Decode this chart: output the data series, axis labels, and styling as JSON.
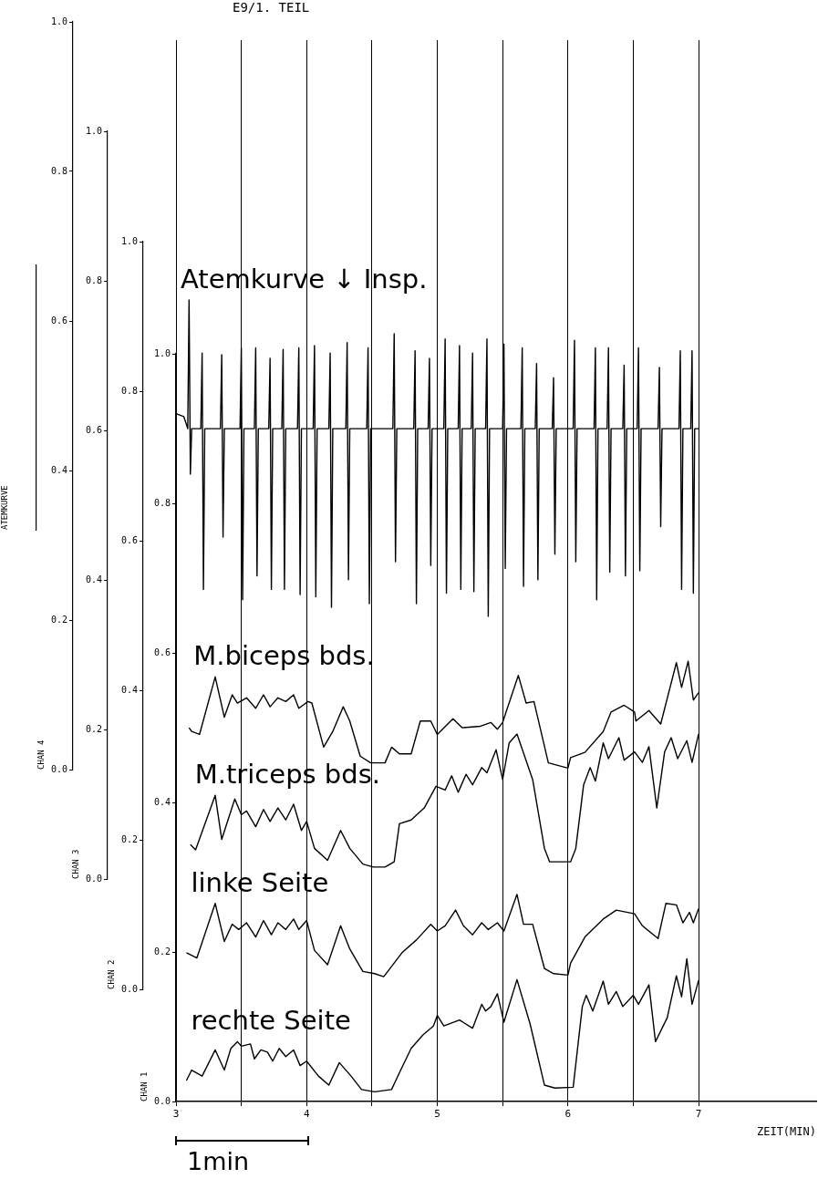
{
  "chart_data": [
    {
      "type": "line",
      "title": "E9/1. TEIL",
      "ylabel": "CHAN 4",
      "y2label": "ATEMKURVE",
      "tick_labels": "y",
      "xlim": [
        3,
        7.9
      ],
      "ylim": [
        0,
        1
      ],
      "yticks": [
        {
          "value": 0,
          "label": "0.0"
        },
        {
          "value": 0.2,
          "label": "0.2"
        },
        {
          "value": 0.4,
          "label": "0.4"
        },
        {
          "value": 0.6,
          "label": "0.6"
        },
        {
          "value": 0.8,
          "label": "0.8"
        },
        {
          "value": 1,
          "label": "1.0"
        }
      ],
      "series": [
        {
          "name": "Atemkurve ↓ Insp.",
          "color": "#000000",
          "x": [
            3.0,
            3.06,
            3.09,
            3.1,
            3.11,
            3.12,
            3.19,
            3.2,
            3.21,
            3.22,
            3.34,
            3.35,
            3.36,
            3.37,
            3.49,
            3.5,
            3.51,
            3.52,
            3.6,
            3.61,
            3.62,
            3.63,
            3.71,
            3.72,
            3.73,
            3.74,
            3.81,
            3.82,
            3.83,
            3.84,
            3.93,
            3.94,
            3.95,
            3.96,
            4.05,
            4.06,
            4.07,
            4.08,
            4.17,
            4.18,
            4.19,
            4.2,
            4.3,
            4.31,
            4.32,
            4.33,
            4.46,
            4.47,
            4.48,
            4.49,
            4.66,
            4.67,
            4.68,
            4.69,
            4.82,
            4.83,
            4.84,
            4.85,
            4.93,
            4.94,
            4.95,
            4.96,
            5.05,
            5.06,
            5.07,
            5.08,
            5.16,
            5.17,
            5.18,
            5.19,
            5.26,
            5.27,
            5.28,
            5.29,
            5.37,
            5.38,
            5.39,
            5.4,
            5.5,
            5.51,
            5.52,
            5.53,
            5.64,
            5.65,
            5.66,
            5.67,
            5.75,
            5.76,
            5.77,
            5.78,
            5.88,
            5.89,
            5.9,
            5.91,
            6.04,
            6.05,
            6.06,
            6.07,
            6.2,
            6.21,
            6.22,
            6.23,
            6.3,
            6.31,
            6.32,
            6.33,
            6.42,
            6.43,
            6.44,
            6.45,
            6.53,
            6.54,
            6.55,
            6.56,
            6.69,
            6.7,
            6.71,
            6.72,
            6.85,
            6.86,
            6.87,
            6.88,
            6.94,
            6.95,
            6.96,
            6.97,
            7.0
          ],
          "values": [
            0.476,
            0.472,
            0.456,
            0.628,
            0.395,
            0.456,
            0.456,
            0.557,
            0.241,
            0.456,
            0.456,
            0.555,
            0.311,
            0.456,
            0.456,
            0.564,
            0.227,
            0.456,
            0.456,
            0.564,
            0.259,
            0.456,
            0.456,
            0.55,
            0.241,
            0.456,
            0.456,
            0.562,
            0.241,
            0.456,
            0.456,
            0.564,
            0.234,
            0.456,
            0.456,
            0.567,
            0.231,
            0.456,
            0.456,
            0.557,
            0.217,
            0.456,
            0.456,
            0.571,
            0.254,
            0.456,
            0.456,
            0.564,
            0.222,
            0.456,
            0.456,
            0.583,
            0.278,
            0.456,
            0.456,
            0.56,
            0.222,
            0.456,
            0.456,
            0.55,
            0.273,
            0.456,
            0.456,
            0.576,
            0.236,
            0.456,
            0.456,
            0.567,
            0.241,
            0.456,
            0.456,
            0.557,
            0.238,
            0.456,
            0.456,
            0.576,
            0.205,
            0.456,
            0.456,
            0.569,
            0.269,
            0.456,
            0.456,
            0.564,
            0.245,
            0.456,
            0.456,
            0.543,
            0.254,
            0.456,
            0.456,
            0.524,
            0.288,
            0.456,
            0.456,
            0.574,
            0.278,
            0.456,
            0.456,
            0.564,
            0.227,
            0.456,
            0.456,
            0.564,
            0.264,
            0.456,
            0.456,
            0.541,
            0.259,
            0.456,
            0.456,
            0.564,
            0.266,
            0.456,
            0.456,
            0.538,
            0.325,
            0.456,
            0.456,
            0.56,
            0.241,
            0.456,
            0.456,
            0.56,
            0.236,
            0.456,
            0.456
          ]
        },
        {
          "name": "M.biceps bds.",
          "color": "#000000",
          "x": [
            3.1,
            3.12,
            3.18,
            3.3,
            3.37,
            3.43,
            3.47,
            3.54,
            3.61,
            3.67,
            3.72,
            3.78,
            3.84,
            3.9,
            3.94,
            4.01,
            4.04,
            4.13,
            4.2,
            4.28,
            4.33,
            4.41,
            4.49,
            4.6,
            4.65,
            4.71,
            4.8,
            4.87,
            4.95,
            5.0,
            5.12,
            5.19,
            5.33,
            5.41,
            5.46,
            5.5,
            5.62,
            5.68,
            5.74,
            5.85,
            6.0,
            6.02,
            6.13,
            6.27,
            6.33,
            6.43,
            6.51,
            6.52,
            6.62,
            6.71,
            6.83,
            6.87,
            6.92,
            6.96,
            7.0
          ],
          "values": [
            0.056,
            0.051,
            0.047,
            0.124,
            0.07,
            0.1,
            0.089,
            0.096,
            0.082,
            0.1,
            0.084,
            0.096,
            0.091,
            0.1,
            0.082,
            0.091,
            0.089,
            0.03,
            0.051,
            0.084,
            0.065,
            0.018,
            0.009,
            0.009,
            0.03,
            0.021,
            0.021,
            0.065,
            0.065,
            0.047,
            0.068,
            0.056,
            0.058,
            0.063,
            0.054,
            0.063,
            0.126,
            0.089,
            0.091,
            0.009,
            0.002,
            0.016,
            0.023,
            0.051,
            0.077,
            0.086,
            0.077,
            0.065,
            0.079,
            0.061,
            0.143,
            0.11,
            0.145,
            0.093,
            0.103
          ]
        }
      ]
    },
    {
      "type": "line",
      "ylabel": "CHAN 3",
      "tick_labels": "y",
      "xlim": [
        3,
        7.9
      ],
      "ylim": [
        0,
        1
      ],
      "yticks": [
        {
          "value": 0,
          "label": "0.0"
        },
        {
          "value": 0.2,
          "label": "0.2"
        },
        {
          "value": 0.4,
          "label": "0.4"
        },
        {
          "value": 0.6,
          "label": "0.6"
        },
        {
          "value": 0.8,
          "label": "0.8"
        },
        {
          "value": 1,
          "label": "1.0"
        }
      ],
      "series": [
        {
          "name": "M.triceps bds.",
          "color": "#000000",
          "x": [
            3.11,
            3.15,
            3.3,
            3.35,
            3.45,
            3.5,
            3.54,
            3.61,
            3.67,
            3.72,
            3.78,
            3.84,
            3.9,
            3.96,
            4.0,
            4.06,
            4.16,
            4.26,
            4.33,
            4.43,
            4.51,
            4.6,
            4.67,
            4.71,
            4.8,
            4.9,
            4.99,
            5.06,
            5.11,
            5.16,
            5.22,
            5.27,
            5.34,
            5.38,
            5.45,
            5.5,
            5.55,
            5.61,
            5.73,
            5.82,
            5.86,
            6.02,
            6.06,
            6.12,
            6.17,
            6.21,
            6.27,
            6.31,
            6.39,
            6.43,
            6.51,
            6.57,
            6.62,
            6.68,
            6.74,
            6.79,
            6.84,
            6.91,
            6.95,
            7.0
          ],
          "values": [
            0.046,
            0.039,
            0.112,
            0.053,
            0.107,
            0.086,
            0.091,
            0.07,
            0.093,
            0.077,
            0.095,
            0.079,
            0.1,
            0.065,
            0.077,
            0.041,
            0.025,
            0.065,
            0.041,
            0.02,
            0.016,
            0.016,
            0.023,
            0.074,
            0.079,
            0.095,
            0.124,
            0.119,
            0.138,
            0.116,
            0.14,
            0.126,
            0.149,
            0.142,
            0.173,
            0.133,
            0.182,
            0.194,
            0.133,
            0.041,
            0.023,
            0.023,
            0.041,
            0.126,
            0.149,
            0.131,
            0.182,
            0.161,
            0.189,
            0.159,
            0.17,
            0.156,
            0.177,
            0.095,
            0.17,
            0.189,
            0.161,
            0.185,
            0.156,
            0.194
          ]
        }
      ]
    },
    {
      "type": "line",
      "ylabel": "CHAN 2",
      "tick_labels": "y",
      "xlim": [
        3,
        7.9
      ],
      "ylim": [
        0,
        1
      ],
      "yticks": [
        {
          "value": 0,
          "label": "0.0"
        },
        {
          "value": 0.2,
          "label": "0.2"
        },
        {
          "value": 0.4,
          "label": "0.4"
        },
        {
          "value": 0.6,
          "label": "0.6"
        },
        {
          "value": 0.8,
          "label": "0.8"
        },
        {
          "value": 1,
          "label": "1.0"
        }
      ],
      "series": [
        {
          "name": "linke Seite",
          "color": "#000000",
          "x": [
            3.08,
            3.16,
            3.3,
            3.37,
            3.43,
            3.48,
            3.54,
            3.61,
            3.67,
            3.73,
            3.78,
            3.84,
            3.9,
            3.94,
            4.0,
            4.06,
            4.16,
            4.26,
            4.33,
            4.43,
            4.52,
            4.59,
            4.73,
            4.84,
            4.95,
            5.0,
            5.06,
            5.14,
            5.2,
            5.27,
            5.34,
            5.39,
            5.46,
            5.51,
            5.61,
            5.66,
            5.73,
            5.82,
            5.89,
            6.0,
            6.02,
            6.13,
            6.27,
            6.37,
            6.51,
            6.57,
            6.69,
            6.75,
            6.83,
            6.88,
            6.93,
            6.96,
            7.0
          ],
          "values": [
            0.049,
            0.042,
            0.115,
            0.064,
            0.087,
            0.08,
            0.089,
            0.07,
            0.092,
            0.073,
            0.089,
            0.08,
            0.094,
            0.08,
            0.092,
            0.052,
            0.033,
            0.085,
            0.054,
            0.024,
            0.021,
            0.017,
            0.049,
            0.066,
            0.087,
            0.078,
            0.085,
            0.106,
            0.085,
            0.073,
            0.089,
            0.08,
            0.089,
            0.078,
            0.127,
            0.087,
            0.087,
            0.028,
            0.021,
            0.019,
            0.035,
            0.07,
            0.094,
            0.106,
            0.101,
            0.085,
            0.068,
            0.115,
            0.113,
            0.089,
            0.103,
            0.089,
            0.108
          ]
        }
      ]
    },
    {
      "type": "line",
      "xlabel": "ZEIT(MIN)",
      "ylabel": "CHAN 1",
      "grid": "x",
      "annotations": [
        "1min"
      ],
      "xlim": [
        3,
        7.9
      ],
      "xticks": [
        3,
        {
          "value": 3.5,
          "label": null
        },
        4,
        {
          "value": 4.5,
          "label": null
        },
        5,
        {
          "value": 5.5,
          "label": null
        },
        6,
        {
          "value": 6.5,
          "label": null
        },
        7
      ],
      "ylim": [
        0,
        1
      ],
      "yticks": [
        {
          "value": 0,
          "label": "0.0"
        },
        {
          "value": 0.2,
          "label": "0.2"
        },
        {
          "value": 0.4,
          "label": "0.4"
        },
        {
          "value": 0.6,
          "label": "0.6"
        },
        {
          "value": 0.8,
          "label": "0.8"
        },
        {
          "value": 1,
          "label": "1.0"
        }
      ],
      "series": [
        {
          "name": "rechte Seite",
          "color": "#000000",
          "x": [
            3.08,
            3.12,
            3.2,
            3.3,
            3.37,
            3.42,
            3.47,
            3.5,
            3.57,
            3.6,
            3.65,
            3.7,
            3.74,
            3.79,
            3.84,
            3.9,
            3.95,
            4.0,
            4.09,
            4.17,
            4.25,
            4.34,
            4.42,
            4.52,
            4.65,
            4.72,
            4.8,
            4.89,
            4.97,
            5.0,
            5.05,
            5.17,
            5.27,
            5.34,
            5.37,
            5.41,
            5.46,
            5.51,
            5.61,
            5.71,
            5.82,
            5.9,
            6.04,
            6.11,
            6.14,
            6.19,
            6.27,
            6.31,
            6.37,
            6.42,
            6.5,
            6.54,
            6.62,
            6.67,
            6.76,
            6.83,
            6.87,
            6.91,
            6.95,
            7.0
          ],
          "values": [
            0.028,
            0.042,
            0.034,
            0.069,
            0.042,
            0.071,
            0.08,
            0.074,
            0.077,
            0.057,
            0.069,
            0.066,
            0.054,
            0.071,
            0.06,
            0.069,
            0.048,
            0.054,
            0.034,
            0.022,
            0.052,
            0.034,
            0.016,
            0.013,
            0.016,
            0.042,
            0.071,
            0.089,
            0.101,
            0.115,
            0.101,
            0.109,
            0.098,
            0.13,
            0.121,
            0.127,
            0.144,
            0.106,
            0.163,
            0.104,
            0.022,
            0.018,
            0.019,
            0.127,
            0.142,
            0.121,
            0.161,
            0.13,
            0.147,
            0.127,
            0.142,
            0.13,
            0.156,
            0.08,
            0.112,
            0.168,
            0.14,
            0.191,
            0.13,
            0.162
          ]
        }
      ]
    }
  ]
}
